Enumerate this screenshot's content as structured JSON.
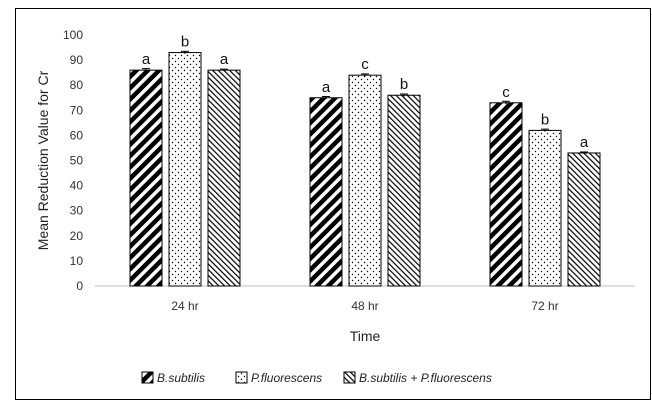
{
  "chart_data": {
    "type": "bar",
    "title": "",
    "xlabel": "Time",
    "ylabel": "Mean Reduction Value for Cr",
    "categories": [
      "24 hr",
      "48 hr",
      "72 hr"
    ],
    "ylim": [
      0,
      100
    ],
    "yticks": [
      0,
      10,
      20,
      30,
      40,
      50,
      60,
      70,
      80,
      90,
      100
    ],
    "grid": false,
    "legend_position": "bottom",
    "series": [
      {
        "name": "B.subtilis",
        "values": [
          86,
          75,
          73
        ],
        "errors": [
          0.6,
          0.5,
          0.6
        ],
        "letters": [
          "a",
          "a",
          "c"
        ],
        "pattern": "wide-diagonal"
      },
      {
        "name": "P.fluorescens",
        "values": [
          93,
          84,
          62
        ],
        "errors": [
          0.5,
          0.5,
          0.5
        ],
        "letters": [
          "b",
          "c",
          "b"
        ],
        "pattern": "dots"
      },
      {
        "name": "B.subtilis + P.fluorescens",
        "values": [
          86,
          76,
          53
        ],
        "errors": [
          0.4,
          0.5,
          0.4
        ],
        "letters": [
          "a",
          "b",
          "a"
        ],
        "pattern": "fine-diagonal"
      }
    ]
  }
}
